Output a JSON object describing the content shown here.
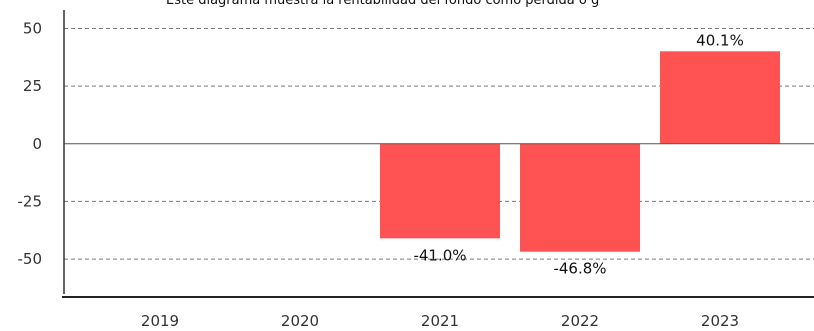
{
  "chart_data": {
    "type": "bar",
    "title": "Este diagrama muestra la rentabilidad del fondo como pérdida o g",
    "categories": [
      "2019",
      "2020",
      "2021",
      "2022",
      "2023"
    ],
    "values": [
      null,
      null,
      -41.0,
      -46.8,
      40.1
    ],
    "data_labels": [
      "",
      "",
      "-41.0%",
      "-46.8%",
      "40.1%"
    ],
    "yticks": [
      50,
      25,
      0,
      -25,
      -50
    ],
    "ylim": [
      -66,
      58
    ],
    "grid": true,
    "bar_color": "#ff5252"
  }
}
